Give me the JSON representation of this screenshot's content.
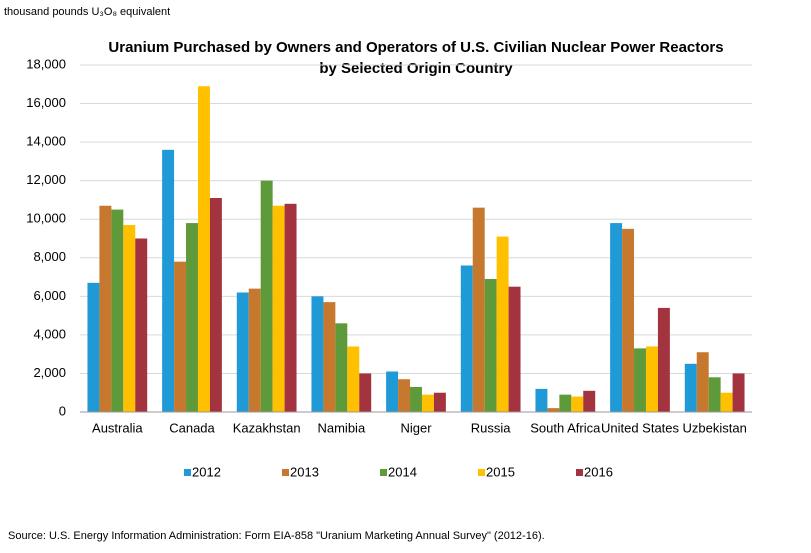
{
  "chart_data": {
    "type": "bar",
    "title": [
      "Uranium Purchased by Owners and Operators of U.S. Civilian Nuclear Power Reactors",
      "by Selected Origin Country"
    ],
    "y_label": "thousand pounds U₃O₈ equivalent",
    "source": "Source: U.S. Energy Information Administration: Form EIA-858 \"Uranium Marketing Annual Survey\"  (2012-16).",
    "categories": [
      "Australia",
      "Canada",
      "Kazakhstan",
      "Namibia",
      "Niger",
      "Russia",
      "South Africa",
      "United States",
      "Uzbekistan"
    ],
    "series": [
      {
        "name": "2012",
        "color": "#1f9ad6",
        "values": [
          6700,
          13600,
          6200,
          6000,
          2100,
          7600,
          1200,
          9800,
          2500
        ]
      },
      {
        "name": "2013",
        "color": "#c7782f",
        "values": [
          10700,
          7800,
          6400,
          5700,
          1700,
          10600,
          200,
          9500,
          3100
        ]
      },
      {
        "name": "2014",
        "color": "#5f9a3a",
        "values": [
          10500,
          9800,
          12000,
          4600,
          1300,
          6900,
          900,
          3300,
          1800
        ]
      },
      {
        "name": "2015",
        "color": "#ffc000",
        "values": [
          9700,
          16900,
          10700,
          3400,
          900,
          9100,
          800,
          3400,
          1000
        ]
      },
      {
        "name": "2016",
        "color": "#a3343f",
        "values": [
          9000,
          11100,
          10800,
          2000,
          1000,
          6500,
          1100,
          5400,
          2000
        ]
      }
    ],
    "ylim": [
      0,
      18000
    ],
    "yticks": [
      0,
      {
        "value": 2000,
        "label": "2,000"
      },
      {
        "value": 4000,
        "label": "4,000"
      },
      {
        "value": 6000,
        "label": "6,000"
      },
      {
        "value": 8000,
        "label": "8,000"
      },
      {
        "value": 10000,
        "label": "10,000"
      },
      {
        "value": 12000,
        "label": "12,000"
      },
      {
        "value": 14000,
        "label": "14,000"
      },
      {
        "value": 16000,
        "label": "16,000"
      },
      {
        "value": 18000,
        "label": "18,000"
      }
    ],
    "grid": true,
    "legend": "bottom"
  }
}
